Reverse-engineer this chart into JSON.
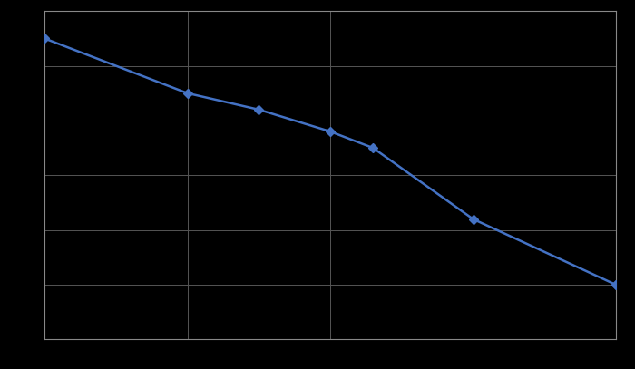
{
  "x": [
    -20,
    -10,
    -5,
    0,
    3,
    10,
    20,
    20
  ],
  "y": [
    65,
    55,
    52,
    48,
    45,
    32,
    20,
    20
  ],
  "line_color": "#4472C4",
  "marker_color": "#4472C4",
  "marker": "D",
  "marker_size": 5,
  "linewidth": 1.8,
  "background_color": "#000000",
  "plot_bg_color": "#000000",
  "grid_color": "#555555",
  "xlim": [
    -20,
    20
  ],
  "ylim": [
    10,
    70
  ],
  "xticks": [
    -20,
    -10,
    0,
    10,
    20
  ],
  "yticks": [
    10,
    20,
    30,
    40,
    50,
    60,
    70
  ],
  "grid": true,
  "spine_color": "#888888"
}
